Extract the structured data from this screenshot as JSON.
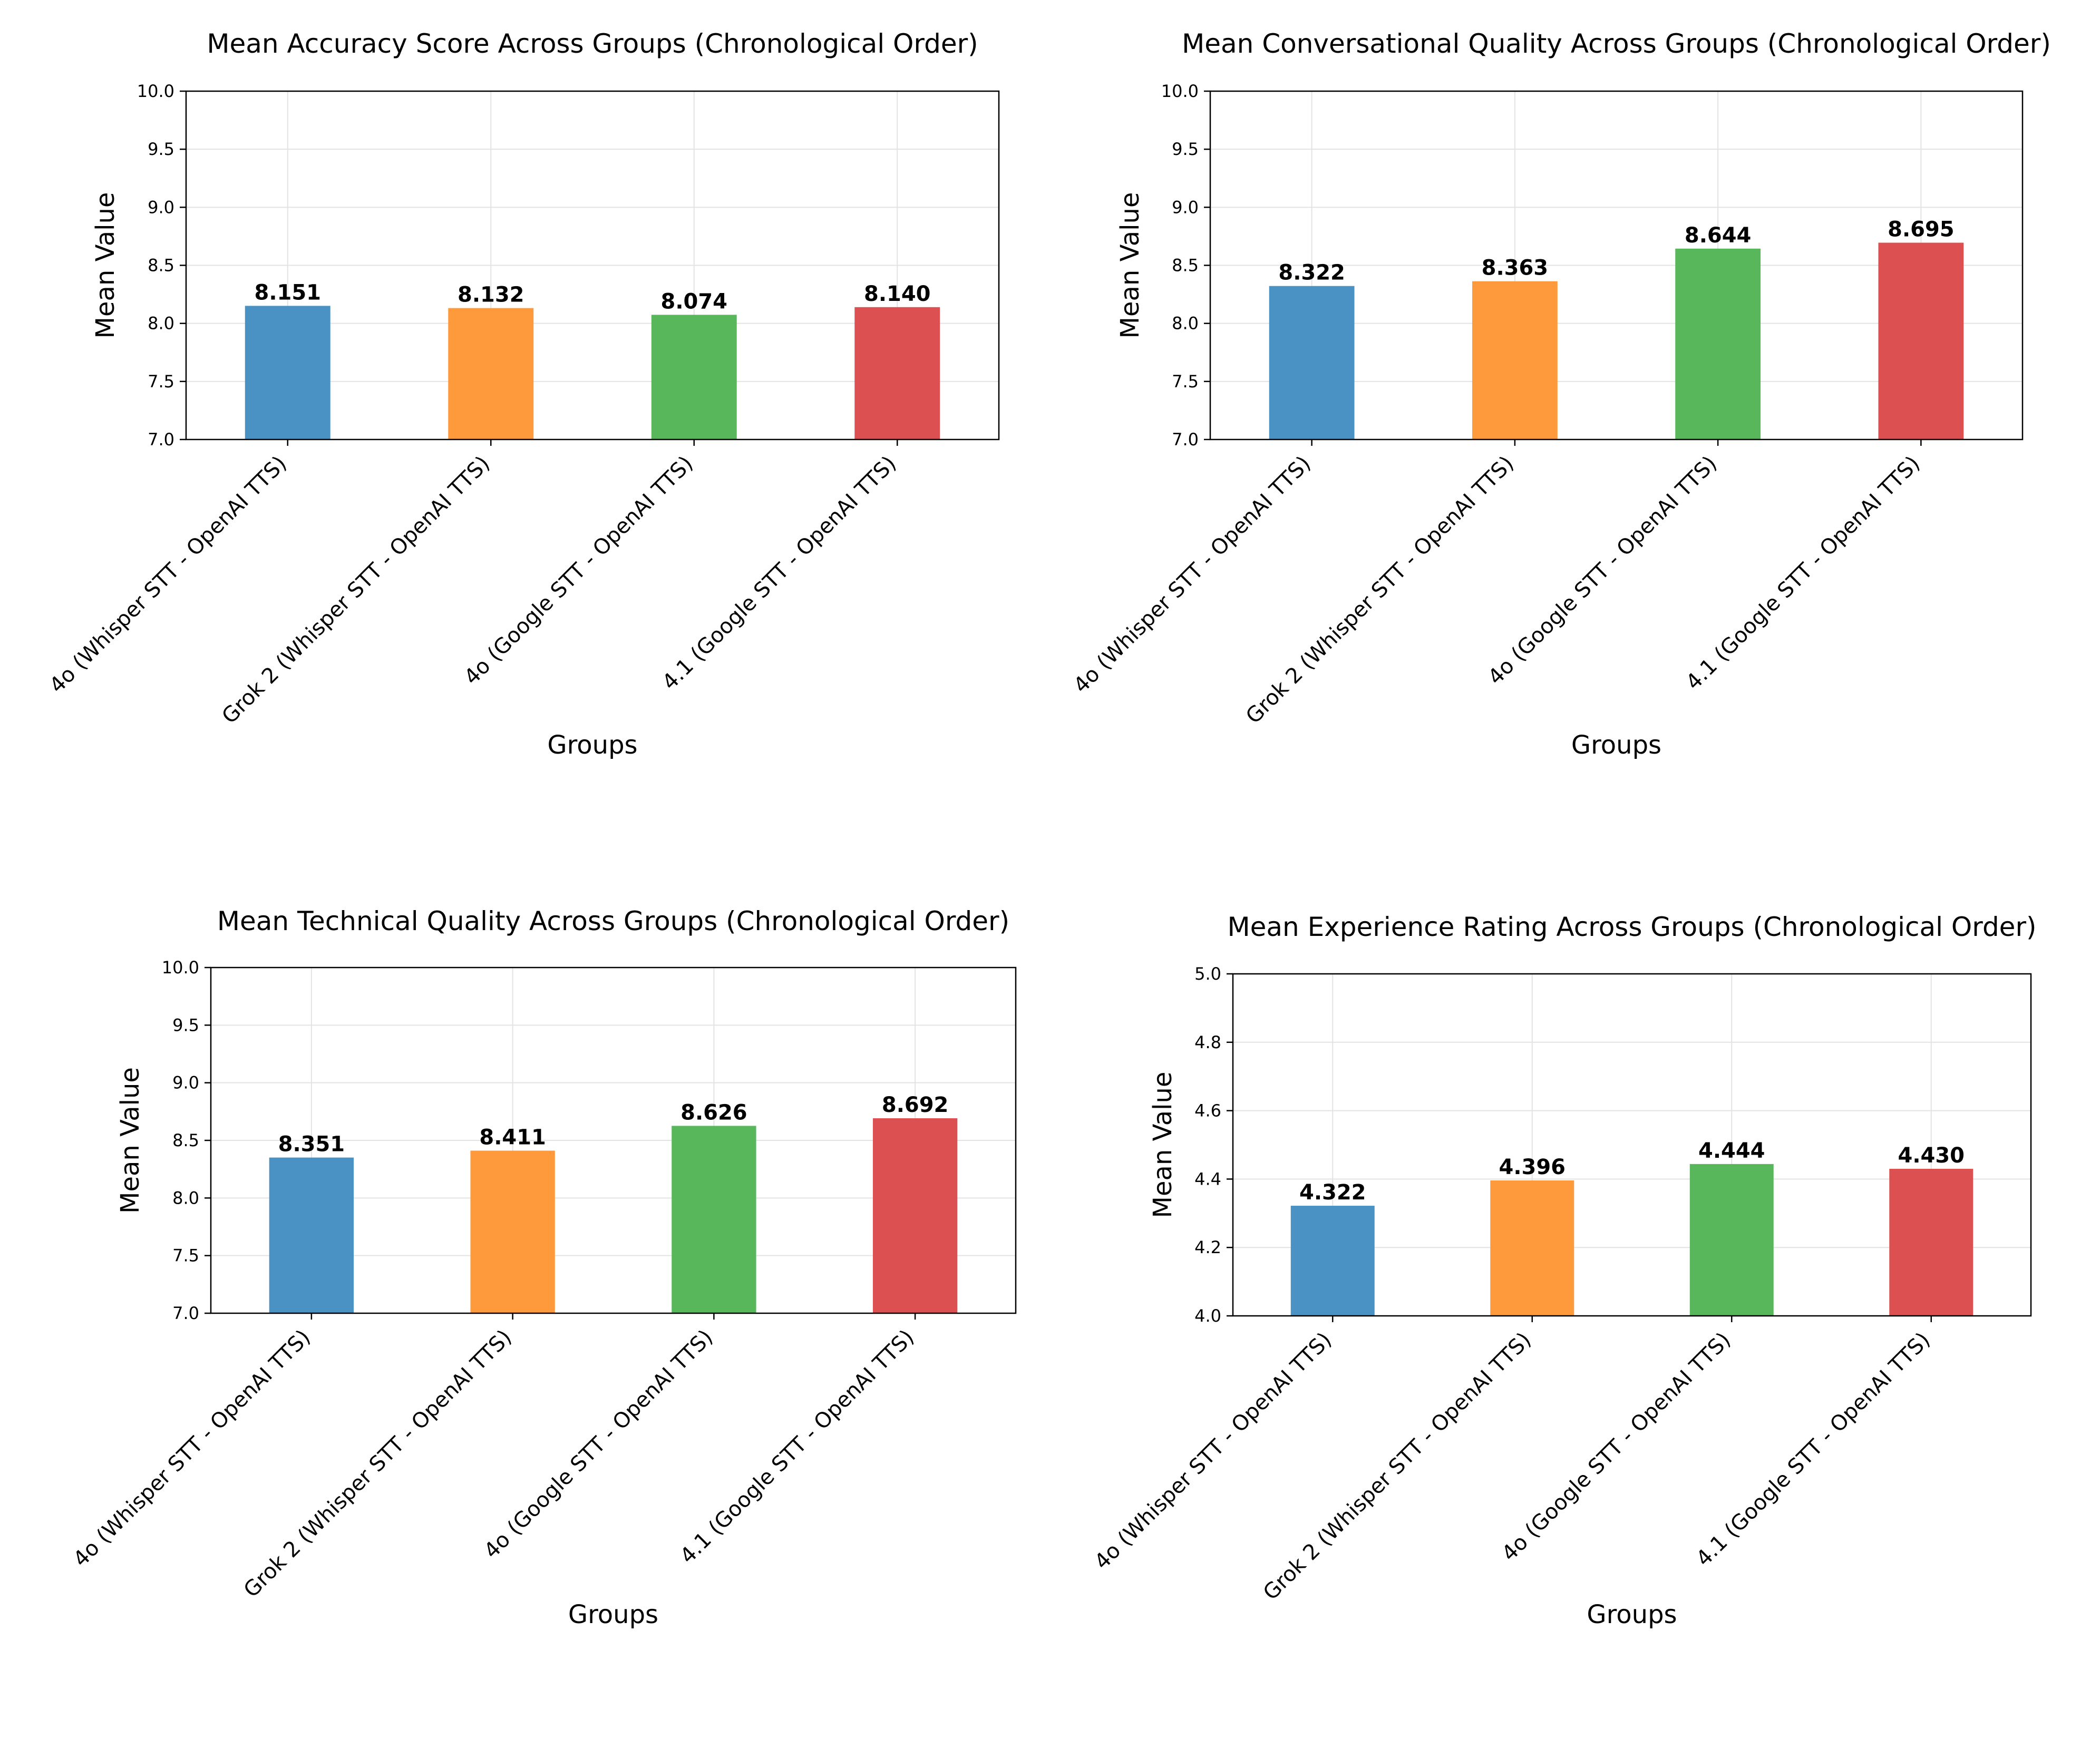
{
  "chart_data": [
    {
      "type": "bar",
      "title": "Mean Accuracy Score Across Groups (Chronological Order)",
      "xlabel": "Groups",
      "ylabel": "Mean Value",
      "categories": [
        "4o (Whisper STT - OpenAI TTS)",
        "Grok 2 (Whisper STT - OpenAI TTS)",
        "4o (Google STT - OpenAI TTS)",
        "4.1 (Google STT - OpenAI TTS)"
      ],
      "values": [
        8.151,
        8.132,
        8.074,
        8.14
      ],
      "value_labels": [
        "8.151",
        "8.132",
        "8.074",
        "8.140"
      ],
      "ylim": [
        7.0,
        10.0
      ],
      "yticks": [
        "7.0",
        "7.5",
        "8.0",
        "8.5",
        "9.0",
        "9.5",
        "10.0"
      ],
      "grid": true,
      "colors": [
        "#4a92c3",
        "#ff9a3c",
        "#58b75a",
        "#dd5052"
      ]
    },
    {
      "type": "bar",
      "title": "Mean Conversational Quality Across Groups (Chronological Order)",
      "xlabel": "Groups",
      "ylabel": "Mean Value",
      "categories": [
        "4o (Whisper STT - OpenAI TTS)",
        "Grok 2 (Whisper STT - OpenAI TTS)",
        "4o (Google STT - OpenAI TTS)",
        "4.1 (Google STT - OpenAI TTS)"
      ],
      "values": [
        8.322,
        8.363,
        8.644,
        8.695
      ],
      "value_labels": [
        "8.322",
        "8.363",
        "8.644",
        "8.695"
      ],
      "ylim": [
        7.0,
        10.0
      ],
      "yticks": [
        "7.0",
        "7.5",
        "8.0",
        "8.5",
        "9.0",
        "9.5",
        "10.0"
      ],
      "grid": true,
      "colors": [
        "#4a92c3",
        "#ff9a3c",
        "#58b75a",
        "#dd5052"
      ]
    },
    {
      "type": "bar",
      "title": "Mean Technical Quality Across Groups (Chronological Order)",
      "xlabel": "Groups",
      "ylabel": "Mean Value",
      "categories": [
        "4o (Whisper STT - OpenAI TTS)",
        "Grok 2 (Whisper STT - OpenAI TTS)",
        "4o (Google STT - OpenAI TTS)",
        "4.1 (Google STT - OpenAI TTS)"
      ],
      "values": [
        8.351,
        8.411,
        8.626,
        8.692
      ],
      "value_labels": [
        "8.351",
        "8.411",
        "8.626",
        "8.692"
      ],
      "ylim": [
        7.0,
        10.0
      ],
      "yticks": [
        "7.0",
        "7.5",
        "8.0",
        "8.5",
        "9.0",
        "9.5",
        "10.0"
      ],
      "grid": true,
      "colors": [
        "#4a92c3",
        "#ff9a3c",
        "#58b75a",
        "#dd5052"
      ]
    },
    {
      "type": "bar",
      "title": "Mean Experience Rating Across Groups (Chronological Order)",
      "xlabel": "Groups",
      "ylabel": "Mean Value",
      "categories": [
        "4o (Whisper STT - OpenAI TTS)",
        "Grok 2 (Whisper STT - OpenAI TTS)",
        "4o (Google STT - OpenAI TTS)",
        "4.1 (Google STT - OpenAI TTS)"
      ],
      "values": [
        4.322,
        4.396,
        4.444,
        4.43
      ],
      "value_labels": [
        "4.322",
        "4.396",
        "4.444",
        "4.430"
      ],
      "ylim": [
        4.0,
        5.0
      ],
      "yticks": [
        "4.0",
        "4.2",
        "4.4",
        "4.6",
        "4.8",
        "5.0"
      ],
      "grid": true,
      "colors": [
        "#4a92c3",
        "#ff9a3c",
        "#58b75a",
        "#dd5052"
      ]
    }
  ]
}
